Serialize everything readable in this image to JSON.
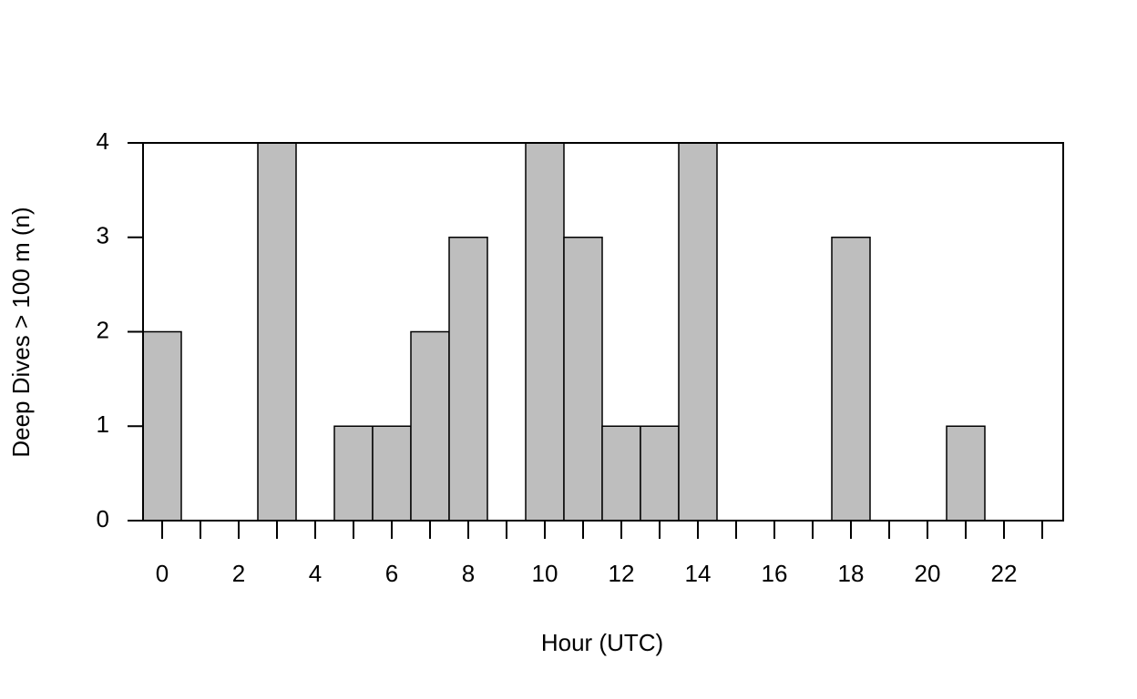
{
  "chart_data": {
    "type": "bar",
    "xlabel": "Hour (UTC)",
    "ylabel": "Deep Dives > 100 m (n)",
    "categories": [
      "0",
      null,
      "2",
      null,
      "4",
      null,
      "6",
      null,
      "8",
      null,
      "10",
      null,
      "12",
      null,
      "14",
      null,
      "16",
      null,
      "18",
      null,
      "20",
      null,
      "22",
      null
    ],
    "values": [
      2,
      0,
      0,
      4,
      0,
      1,
      1,
      2,
      3,
      0,
      4,
      3,
      1,
      1,
      4,
      0,
      0,
      0,
      3,
      0,
      0,
      1,
      0,
      0
    ],
    "color": "#bebebe",
    "ylim": [
      0,
      4
    ],
    "yticks": [
      0,
      1,
      2,
      3,
      4
    ],
    "grid": false
  }
}
